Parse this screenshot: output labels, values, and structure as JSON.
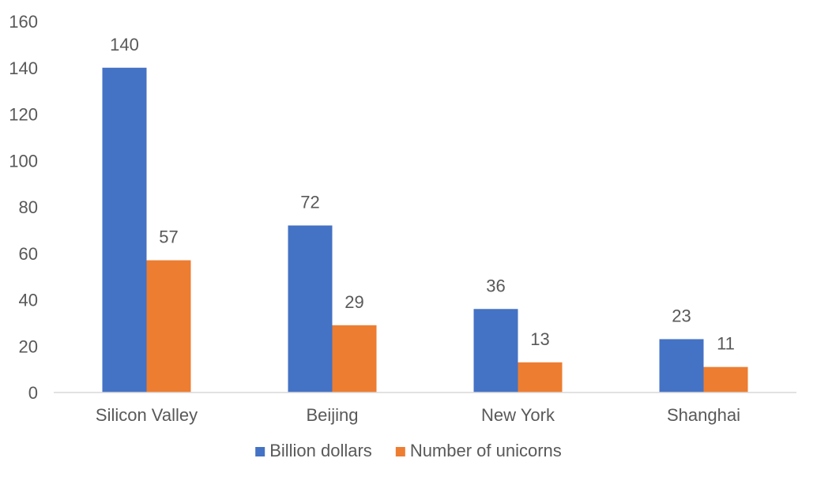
{
  "chart_data": {
    "type": "bar",
    "title": "",
    "xlabel": "",
    "ylabel": "",
    "categories": [
      "Silicon Valley",
      "Beijing",
      "New York",
      "Shanghai"
    ],
    "series": [
      {
        "name": "Billion dollars",
        "values": [
          140,
          72,
          36,
          23
        ],
        "color": "#4472C4"
      },
      {
        "name": "Number of unicorns",
        "values": [
          57,
          29,
          13,
          11
        ],
        "color": "#ED7D31"
      }
    ],
    "ylim": [
      0,
      160
    ],
    "yticks": [
      0,
      20,
      40,
      60,
      80,
      100,
      120,
      140,
      160
    ],
    "grid": false,
    "legend_position": "bottom",
    "axis_color": "#D9D9D9",
    "text_color": "#595959"
  }
}
